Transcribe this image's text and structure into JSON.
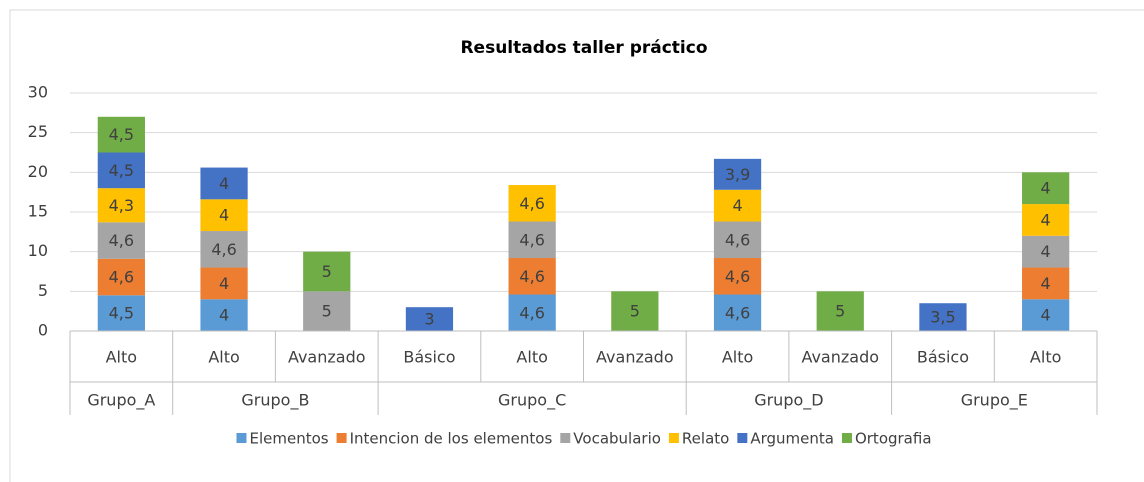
{
  "chart_data": {
    "type": "stacked_bar",
    "title": "Resultados taller práctico",
    "categories": [
      "Alto",
      "Alto",
      "Avanzado",
      "Básico",
      "Alto",
      "Avanzado",
      "Alto",
      "Avanzado",
      "Básico",
      "Alto"
    ],
    "category_groups": [
      "Grupo_A",
      "Grupo_B",
      "Grupo_B",
      "Grupo_C",
      "Grupo_C",
      "Grupo_C",
      "Grupo_D",
      "Grupo_D",
      "Grupo_E",
      "Grupo_E"
    ],
    "series": [
      {
        "name": "Elementos",
        "color": "#5b9bd5",
        "values": [
          4.5,
          4,
          null,
          null,
          4.6,
          null,
          4.6,
          null,
          null,
          4
        ],
        "value_labels": [
          "4,5",
          "4",
          null,
          null,
          "4,6",
          null,
          "4,6",
          null,
          null,
          "4"
        ]
      },
      {
        "name": "Intencion de los elementos",
        "color": "#ed7d31",
        "values": [
          4.6,
          4,
          null,
          null,
          4.6,
          null,
          4.6,
          null,
          null,
          4
        ],
        "value_labels": [
          "4,6",
          "4",
          null,
          null,
          "4,6",
          null,
          "4,6",
          null,
          null,
          "4"
        ]
      },
      {
        "name": "Vocabulario",
        "color": "#a5a5a5",
        "values": [
          4.6,
          4.6,
          5,
          null,
          4.6,
          null,
          4.6,
          null,
          null,
          4
        ],
        "value_labels": [
          "4,6",
          "4,6",
          "5",
          null,
          "4,6",
          null,
          "4,6",
          null,
          null,
          "4"
        ]
      },
      {
        "name": "Relato",
        "color": "#ffc000",
        "values": [
          4.3,
          4,
          null,
          null,
          4.6,
          null,
          4,
          null,
          null,
          4
        ],
        "value_labels": [
          "4,3",
          "4",
          null,
          null,
          "4,6",
          null,
          "4",
          null,
          null,
          "4"
        ]
      },
      {
        "name": "Argumenta",
        "color": "#4472c4",
        "values": [
          4.5,
          4,
          null,
          3,
          null,
          null,
          3.9,
          null,
          3.5,
          null
        ],
        "value_labels": [
          "4,5",
          "4",
          null,
          "3",
          null,
          null,
          "3,9",
          null,
          "3,5",
          null
        ]
      },
      {
        "name": "Ortografia",
        "color": "#70ad47",
        "values": [
          4.5,
          null,
          5,
          null,
          null,
          5,
          null,
          5,
          null,
          4
        ],
        "value_labels": [
          "4,5",
          null,
          "5",
          null,
          null,
          "5",
          null,
          "5",
          null,
          "4"
        ]
      }
    ],
    "ylim": [
      0,
      30
    ],
    "yticks": [
      0,
      5,
      10,
      15,
      20,
      25,
      30
    ],
    "grid": true,
    "legend": "bottom"
  }
}
